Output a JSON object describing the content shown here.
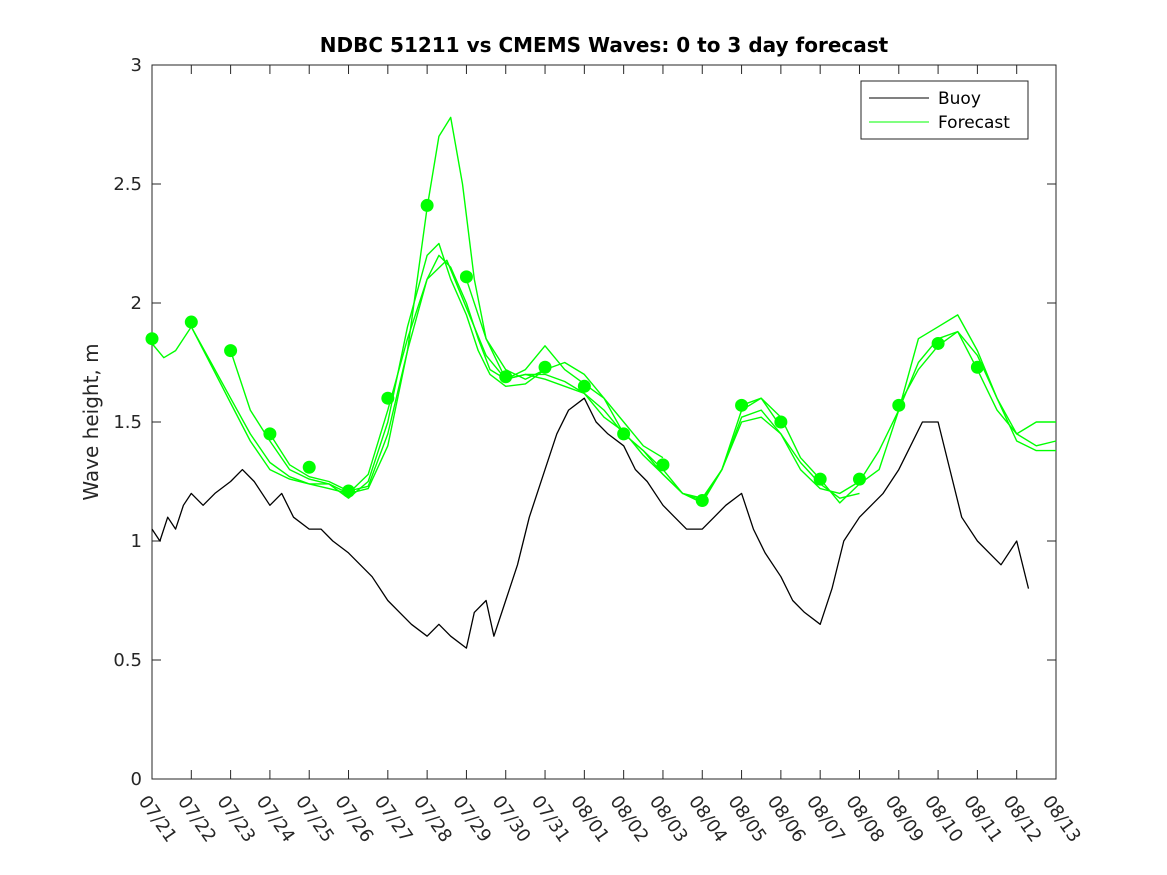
{
  "chart_data": {
    "type": "line",
    "title": "NDBC 51211 vs CMEMS Waves: 0 to 3 day forecast",
    "xlabel": "",
    "ylabel": "Wave height, m",
    "ylim": [
      0,
      3
    ],
    "y_ticks": [
      "0",
      "0.5",
      "1",
      "1.5",
      "2",
      "2.5",
      "3"
    ],
    "x_ticks": [
      "07/21",
      "07/22",
      "07/23",
      "07/24",
      "07/25",
      "07/26",
      "07/27",
      "07/28",
      "07/29",
      "07/30",
      "07/31",
      "08/01",
      "08/02",
      "08/03",
      "08/04",
      "08/05",
      "08/06",
      "08/07",
      "08/08",
      "08/09",
      "08/10",
      "08/11",
      "08/12",
      "08/13"
    ],
    "grid": false,
    "legend_position": "top-right",
    "legend": [
      "Buoy",
      "Forecast"
    ],
    "colors": {
      "buoy": "#000000",
      "forecast": "#00ff00"
    },
    "series": [
      {
        "name": "Buoy",
        "x": [
          0,
          0.2,
          0.4,
          0.6,
          0.8,
          1.0,
          1.3,
          1.6,
          2.0,
          2.3,
          2.6,
          3.0,
          3.3,
          3.6,
          4.0,
          4.3,
          4.6,
          5.0,
          5.3,
          5.6,
          6.0,
          6.3,
          6.6,
          7.0,
          7.3,
          7.6,
          8.0,
          8.2,
          8.5,
          8.7,
          9.0,
          9.3,
          9.6,
          10.0,
          10.3,
          10.6,
          11.0,
          11.3,
          11.6,
          12.0,
          12.3,
          12.6,
          13.0,
          13.3,
          13.6,
          14.0,
          14.3,
          14.6,
          15.0,
          15.3,
          15.6,
          16.0,
          16.3,
          16.6,
          17.0,
          17.3,
          17.6,
          18.0,
          18.3,
          18.6,
          19.0,
          19.3,
          19.6,
          20.0,
          20.3,
          20.6,
          21.0,
          21.3,
          21.6,
          22.0,
          22.3
        ],
        "y": [
          1.05,
          1.0,
          1.1,
          1.05,
          1.15,
          1.2,
          1.15,
          1.2,
          1.25,
          1.3,
          1.25,
          1.15,
          1.2,
          1.1,
          1.05,
          1.05,
          1.0,
          0.95,
          0.9,
          0.85,
          0.75,
          0.7,
          0.65,
          0.6,
          0.65,
          0.6,
          0.55,
          0.7,
          0.75,
          0.6,
          0.75,
          0.9,
          1.1,
          1.3,
          1.45,
          1.55,
          1.6,
          1.5,
          1.45,
          1.4,
          1.3,
          1.25,
          1.15,
          1.1,
          1.05,
          1.05,
          1.1,
          1.15,
          1.2,
          1.05,
          0.95,
          0.85,
          0.75,
          0.7,
          0.65,
          0.8,
          1.0,
          1.1,
          1.15,
          1.2,
          1.3,
          1.4,
          1.5,
          1.5,
          1.3,
          1.1,
          1.0,
          0.95,
          0.9,
          1.0,
          0.8
        ]
      },
      {
        "name": "Forecast",
        "x": [
          0,
          0.3,
          0.6,
          1.0,
          1.5,
          2.0,
          2.5,
          3.0,
          3.5,
          4.0,
          4.5,
          5.0,
          5.5,
          6.0,
          6.5,
          7.0,
          7.3,
          7.6,
          8.0,
          8.3,
          8.6,
          9.0,
          9.5,
          10.0,
          10.5,
          11.0,
          11.5,
          12.0,
          12.5,
          13.0,
          13.5,
          14.0,
          14.5,
          15.0,
          15.5,
          16.0,
          16.5,
          17.0,
          17.5,
          18.0,
          18.5,
          19.0,
          19.5,
          20.0,
          20.5,
          21.0,
          21.5,
          22.0,
          22.5,
          23.0
        ],
        "y": [
          1.83,
          1.77,
          1.8,
          1.9,
          1.75,
          1.6,
          1.45,
          1.33,
          1.27,
          1.24,
          1.22,
          1.2,
          1.28,
          1.55,
          1.85,
          2.1,
          2.2,
          2.15,
          2.0,
          1.85,
          1.72,
          1.68,
          1.7,
          1.7,
          1.67,
          1.62,
          1.55,
          1.45,
          1.38,
          1.28,
          1.2,
          1.17,
          1.3,
          1.52,
          1.55,
          1.45,
          1.3,
          1.22,
          1.2,
          1.25,
          1.38,
          1.55,
          1.75,
          1.85,
          1.88,
          1.78,
          1.6,
          1.45,
          1.4,
          1.42
        ]
      },
      {
        "name": "Forecast",
        "x": [
          1.0,
          1.5,
          2.0,
          2.5,
          3.0,
          3.5,
          4.0,
          4.5,
          5.0,
          5.5,
          6.0,
          6.5,
          7.0,
          7.3,
          7.6,
          8.0,
          8.3,
          8.6,
          9.0,
          9.5,
          10.0
        ],
        "y": [
          1.9,
          1.74,
          1.58,
          1.42,
          1.3,
          1.26,
          1.24,
          1.24,
          1.18,
          1.25,
          1.5,
          1.9,
          2.2,
          2.25,
          2.1,
          1.95,
          1.8,
          1.7,
          1.65,
          1.66,
          1.72
        ]
      },
      {
        "name": "Forecast",
        "x": [
          2.0,
          2.5,
          3.0,
          3.5,
          4.0,
          4.5,
          5.0,
          5.5,
          6.0,
          6.5,
          7.0,
          7.3,
          7.6,
          7.9,
          8.2,
          8.5,
          9.0,
          9.5,
          10.0,
          10.5,
          11.0,
          11.5,
          12.0,
          12.5,
          13.0
        ],
        "y": [
          1.8,
          1.55,
          1.42,
          1.3,
          1.26,
          1.24,
          1.2,
          1.22,
          1.4,
          1.8,
          2.4,
          2.7,
          2.78,
          2.5,
          2.1,
          1.85,
          1.72,
          1.68,
          1.72,
          1.75,
          1.7,
          1.6,
          1.5,
          1.4,
          1.35
        ]
      },
      {
        "name": "Forecast",
        "x": [
          3.0,
          3.5,
          4.0,
          4.5,
          5.0,
          5.5,
          6.0,
          6.5,
          7.0,
          7.5,
          8.0,
          8.5,
          9.0,
          9.5,
          10.0,
          10.5,
          11.0,
          11.5,
          12.0,
          12.5,
          13.0,
          13.5,
          14.0,
          14.5,
          15.0,
          15.5,
          16.0
        ],
        "y": [
          1.45,
          1.32,
          1.27,
          1.25,
          1.21,
          1.23,
          1.45,
          1.8,
          2.1,
          2.18,
          1.98,
          1.78,
          1.68,
          1.7,
          1.68,
          1.65,
          1.62,
          1.52,
          1.46,
          1.36,
          1.28,
          1.2,
          1.16,
          1.3,
          1.55,
          1.6,
          1.48
        ]
      },
      {
        "name": "Forecast",
        "x": [
          8.0,
          8.5,
          9.0,
          9.5,
          10.0,
          10.5,
          11.0,
          11.5,
          12.0,
          12.5,
          13.0,
          13.5,
          14.0,
          14.5,
          15.0,
          15.5,
          16.0,
          16.5,
          17.0,
          17.5,
          18.0
        ],
        "y": [
          2.1,
          1.85,
          1.68,
          1.72,
          1.82,
          1.72,
          1.66,
          1.6,
          1.45,
          1.38,
          1.3,
          1.2,
          1.18,
          1.3,
          1.5,
          1.52,
          1.45,
          1.33,
          1.24,
          1.18,
          1.2
        ]
      },
      {
        "name": "Forecast",
        "x": [
          15.0,
          15.5,
          16.0,
          16.5,
          17.0,
          17.5,
          18.0,
          18.5,
          19.0,
          19.5,
          20.0,
          20.5,
          21.0,
          21.5,
          22.0,
          22.5,
          23.0
        ],
        "y": [
          1.57,
          1.6,
          1.52,
          1.35,
          1.26,
          1.16,
          1.24,
          1.3,
          1.55,
          1.85,
          1.9,
          1.95,
          1.8,
          1.6,
          1.42,
          1.38,
          1.38
        ]
      },
      {
        "name": "Forecast",
        "x": [
          19.0,
          19.5,
          20.0,
          20.5,
          21.0,
          21.5,
          22.0,
          22.5,
          23.0
        ],
        "y": [
          1.57,
          1.72,
          1.82,
          1.88,
          1.72,
          1.55,
          1.45,
          1.5,
          1.5
        ]
      }
    ],
    "markers": [
      {
        "x": 0,
        "y": 1.85
      },
      {
        "x": 1,
        "y": 1.92
      },
      {
        "x": 2,
        "y": 1.8
      },
      {
        "x": 3,
        "y": 1.45
      },
      {
        "x": 4,
        "y": 1.31
      },
      {
        "x": 5,
        "y": 1.21
      },
      {
        "x": 6,
        "y": 1.6
      },
      {
        "x": 7,
        "y": 2.41
      },
      {
        "x": 8,
        "y": 2.11
      },
      {
        "x": 9,
        "y": 1.69
      },
      {
        "x": 10,
        "y": 1.73
      },
      {
        "x": 11,
        "y": 1.65
      },
      {
        "x": 12,
        "y": 1.45
      },
      {
        "x": 13,
        "y": 1.32
      },
      {
        "x": 14,
        "y": 1.17
      },
      {
        "x": 15,
        "y": 1.57
      },
      {
        "x": 16,
        "y": 1.5
      },
      {
        "x": 17,
        "y": 1.26
      },
      {
        "x": 18,
        "y": 1.26
      },
      {
        "x": 19,
        "y": 1.57
      },
      {
        "x": 20,
        "y": 1.83
      },
      {
        "x": 21,
        "y": 1.73
      }
    ]
  }
}
